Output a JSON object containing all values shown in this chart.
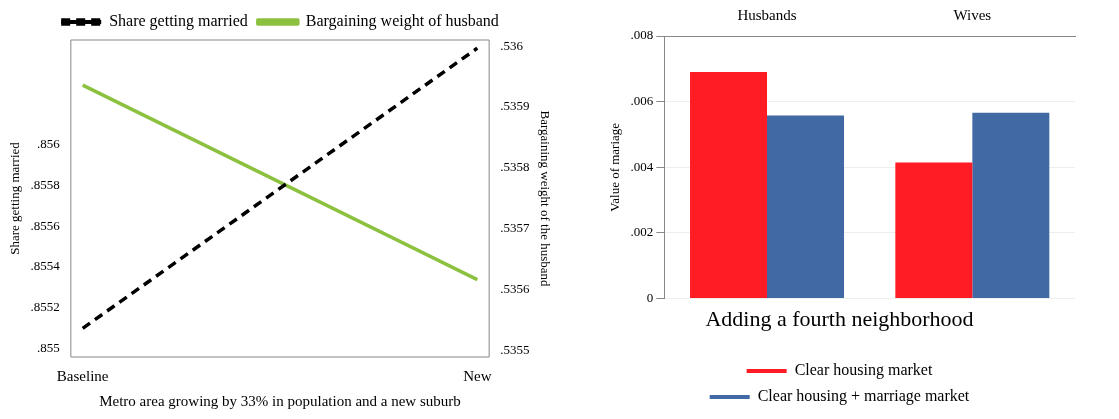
{
  "chart_data": [
    {
      "type": "line",
      "categories": [
        "Baseline",
        "New"
      ],
      "xlabel": "Metro area growing by 33% in population and a new suburb",
      "ylabel": "Share getting married",
      "y2label": "Bargaining weight of the husband",
      "ylim": [
        0.85496,
        0.85651
      ],
      "yticks": [
        {
          "value": 0.855,
          "label": ".855"
        },
        {
          "value": 0.8552,
          "label": ".8552"
        },
        {
          "value": 0.8554,
          "label": ".8554"
        },
        {
          "value": 0.8556,
          "label": ".8556"
        },
        {
          "value": 0.8558,
          "label": ".8558"
        },
        {
          "value": 0.856,
          "label": ".856"
        }
      ],
      "y2lim": [
        0.53549,
        0.53601
      ],
      "y2ticks": [
        {
          "value": 0.5355,
          "label": ".5355"
        },
        {
          "value": 0.5356,
          "label": ".5356"
        },
        {
          "value": 0.5357,
          "label": ".5357"
        },
        {
          "value": 0.5358,
          "label": ".5358"
        },
        {
          "value": 0.5359,
          "label": ".5359"
        },
        {
          "value": 0.536,
          "label": ".536"
        }
      ],
      "grid": false,
      "legend": "top",
      "marker": "none",
      "series": [
        {
          "name": "Share getting married",
          "color": "#000000",
          "line_style": "dashed",
          "values": [
            0.8551,
            0.85647
          ]
        },
        {
          "name": "Bargaining weight of husband",
          "color": "#8cc13f",
          "line_style": "solid",
          "axis": "y2",
          "values": [
            0.535936,
            0.535617
          ]
        }
      ]
    },
    {
      "type": "bar",
      "categories": [
        "Husbands",
        "Wives"
      ],
      "title": "Adding a fourth neighborhood",
      "ylabel": "Value of mariage",
      "ylim": [
        0,
        0.008
      ],
      "yticks": [
        0,
        {
          "value": 0.002,
          "label": ".002"
        },
        {
          "value": 0.004,
          "label": ".004"
        },
        {
          "value": 0.006,
          "label": ".006"
        },
        {
          "value": 0.008,
          "label": ".008"
        }
      ],
      "grid": "y",
      "legend": "bottom",
      "series": [
        {
          "name": "Clear housing market",
          "color": "#ff1c24",
          "values": [
            0.0069,
            0.00415
          ]
        },
        {
          "name": "Clear housing + marriage market",
          "color": "#4169a3",
          "values": [
            0.00558,
            0.00566
          ]
        }
      ]
    }
  ]
}
